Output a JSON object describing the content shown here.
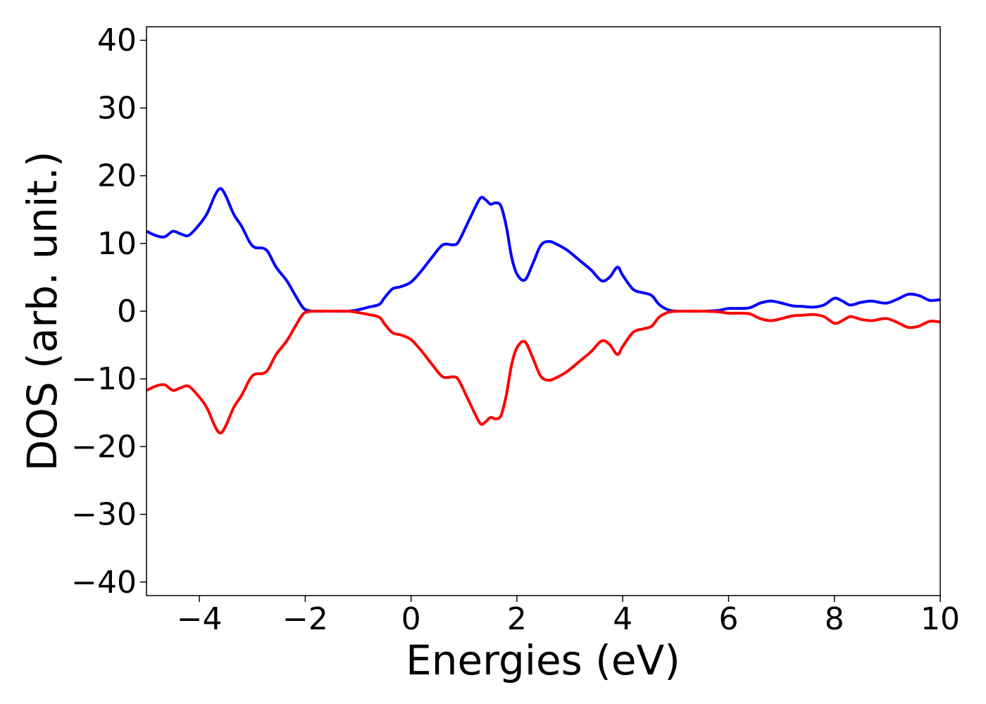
{
  "chart_data": {
    "type": "line",
    "title": "",
    "xlabel": "Energies (eV)",
    "ylabel": "DOS (arb. unit.)",
    "xlim": [
      -5,
      10
    ],
    "ylim": [
      -42,
      42
    ],
    "xticks": [
      -4,
      -2,
      0,
      2,
      4,
      6,
      8,
      10
    ],
    "xtick_labels": [
      "−4",
      "−2",
      "0",
      "2",
      "4",
      "6",
      "8",
      "10"
    ],
    "yticks": [
      40,
      30,
      20,
      10,
      0,
      -10,
      -20,
      -30,
      -40
    ],
    "ytick_labels": [
      "40",
      "30",
      "20",
      "10",
      "0",
      "−10",
      "−20",
      "−30",
      "−40"
    ],
    "grid": false,
    "legend": "none",
    "series": [
      {
        "color": "#0000ff",
        "x": [
          -5.0,
          -4.8,
          -4.65,
          -4.5,
          -4.35,
          -4.2,
          -4.0,
          -3.85,
          -3.7,
          -3.6,
          -3.5,
          -3.35,
          -3.2,
          -3.05,
          -2.95,
          -2.8,
          -2.7,
          -2.55,
          -2.35,
          -2.2,
          -2.05,
          -1.95,
          -1.8,
          -1.5,
          -1.2,
          -1.0,
          -0.8,
          -0.6,
          -0.5,
          -0.35,
          -0.2,
          0.0,
          0.2,
          0.4,
          0.6,
          0.8,
          0.9,
          1.1,
          1.3,
          1.4,
          1.5,
          1.6,
          1.7,
          1.8,
          1.9,
          2.0,
          2.15,
          2.3,
          2.45,
          2.6,
          2.75,
          2.95,
          3.2,
          3.4,
          3.6,
          3.75,
          3.9,
          4.0,
          4.2,
          4.4,
          4.55,
          4.7,
          4.9,
          5.2,
          5.5,
          5.8,
          6.0,
          6.2,
          6.4,
          6.6,
          6.8,
          7.0,
          7.2,
          7.4,
          7.6,
          7.8,
          8.0,
          8.15,
          8.3,
          8.5,
          8.7,
          8.85,
          9.0,
          9.2,
          9.4,
          9.6,
          9.8,
          10.0
        ],
        "y": [
          11.8,
          11.1,
          11.0,
          11.8,
          11.4,
          11.2,
          12.8,
          14.5,
          17.2,
          18.1,
          17.0,
          14.3,
          12.5,
          10.2,
          9.4,
          9.3,
          8.7,
          6.5,
          4.5,
          2.5,
          0.6,
          0.1,
          0.0,
          0.0,
          0.0,
          0.2,
          0.6,
          1.0,
          2.0,
          3.3,
          3.6,
          4.3,
          6.0,
          8.0,
          9.8,
          9.8,
          10.3,
          13.5,
          16.6,
          16.5,
          15.8,
          16.0,
          15.5,
          12.5,
          8.0,
          5.5,
          4.6,
          7.0,
          9.7,
          10.3,
          9.9,
          9.0,
          7.4,
          6.1,
          4.5,
          5.0,
          6.5,
          5.3,
          3.2,
          2.7,
          2.3,
          0.9,
          0.1,
          0.0,
          0.0,
          0.1,
          0.4,
          0.4,
          0.5,
          1.2,
          1.5,
          1.2,
          0.8,
          0.7,
          0.6,
          0.9,
          1.9,
          1.5,
          0.9,
          1.3,
          1.5,
          1.3,
          1.2,
          1.8,
          2.5,
          2.3,
          1.6,
          1.7
        ]
      },
      {
        "color": "#ff0000",
        "x": [
          -5.0,
          -4.8,
          -4.65,
          -4.5,
          -4.35,
          -4.2,
          -4.0,
          -3.85,
          -3.7,
          -3.6,
          -3.5,
          -3.35,
          -3.2,
          -3.05,
          -2.95,
          -2.8,
          -2.7,
          -2.55,
          -2.35,
          -2.2,
          -2.05,
          -1.95,
          -1.8,
          -1.5,
          -1.2,
          -1.0,
          -0.8,
          -0.6,
          -0.5,
          -0.35,
          -0.2,
          0.0,
          0.2,
          0.4,
          0.6,
          0.8,
          0.9,
          1.1,
          1.3,
          1.4,
          1.5,
          1.6,
          1.7,
          1.8,
          1.9,
          2.0,
          2.15,
          2.3,
          2.45,
          2.6,
          2.75,
          2.95,
          3.2,
          3.4,
          3.6,
          3.75,
          3.9,
          4.0,
          4.2,
          4.4,
          4.55,
          4.7,
          4.9,
          5.2,
          5.5,
          5.8,
          6.0,
          6.2,
          6.4,
          6.6,
          6.8,
          7.0,
          7.2,
          7.4,
          7.6,
          7.8,
          8.0,
          8.15,
          8.3,
          8.5,
          8.7,
          8.85,
          9.0,
          9.2,
          9.4,
          9.6,
          9.8,
          10.0
        ],
        "y": [
          -11.7,
          -11.0,
          -10.9,
          -11.7,
          -11.3,
          -11.1,
          -12.7,
          -14.4,
          -17.1,
          -18.0,
          -16.9,
          -14.2,
          -12.4,
          -10.1,
          -9.3,
          -9.2,
          -8.6,
          -6.4,
          -4.4,
          -2.4,
          -0.5,
          -0.1,
          0.0,
          0.0,
          0.0,
          -0.2,
          -0.5,
          -0.9,
          -1.9,
          -3.2,
          -3.5,
          -4.2,
          -5.9,
          -7.9,
          -9.7,
          -9.7,
          -10.2,
          -13.4,
          -16.5,
          -16.4,
          -15.7,
          -15.9,
          -15.4,
          -12.4,
          -7.9,
          -5.4,
          -4.5,
          -6.9,
          -9.6,
          -10.2,
          -9.8,
          -8.9,
          -7.3,
          -6.0,
          -4.4,
          -4.9,
          -6.4,
          -5.2,
          -3.1,
          -2.6,
          -2.2,
          -0.8,
          -0.1,
          0.0,
          0.0,
          -0.1,
          -0.3,
          -0.3,
          -0.4,
          -1.1,
          -1.4,
          -1.1,
          -0.7,
          -0.6,
          -0.5,
          -0.8,
          -1.8,
          -1.4,
          -0.8,
          -1.2,
          -1.4,
          -1.2,
          -1.1,
          -1.7,
          -2.4,
          -2.2,
          -1.5,
          -1.6
        ]
      }
    ]
  }
}
